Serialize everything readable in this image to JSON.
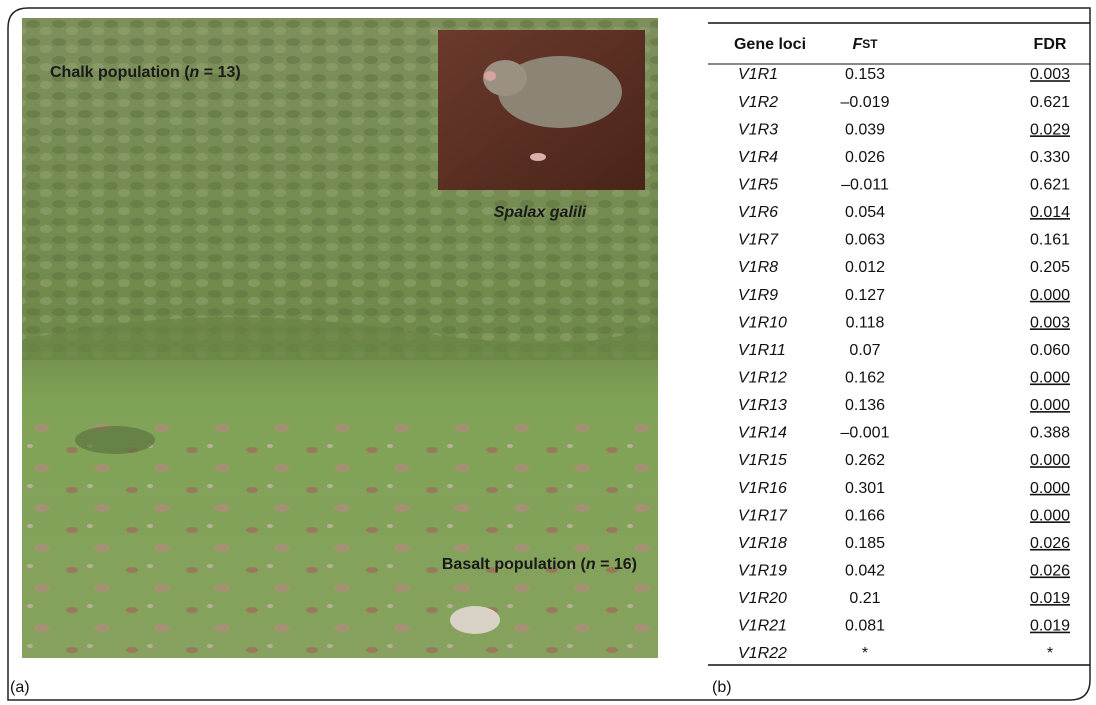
{
  "panel_a": {
    "chalk_label": [
      "Chalk population (",
      "n",
      " = 13)"
    ],
    "basalt_label": [
      "Basalt population (",
      "n",
      " = 16)"
    ],
    "species_label": "Spalax galili",
    "panel_tag": "(a)"
  },
  "panel_b": {
    "columns": [
      "Gene loci",
      [
        "F",
        "ST"
      ],
      "FDR"
    ],
    "rows": [
      {
        "cells": [
          "V1R1",
          "0.153",
          "0.003"
        ],
        "fdr_underlined": true
      },
      {
        "cells": [
          "V1R2",
          "–0.019",
          "0.621"
        ],
        "fdr_underlined": false
      },
      {
        "cells": [
          "V1R3",
          "0.039",
          "0.029"
        ],
        "fdr_underlined": true
      },
      {
        "cells": [
          "V1R4",
          "0.026",
          "0.330"
        ],
        "fdr_underlined": false
      },
      {
        "cells": [
          "V1R5",
          "–0.011",
          "0.621"
        ],
        "fdr_underlined": false
      },
      {
        "cells": [
          "V1R6",
          "0.054",
          "0.014"
        ],
        "fdr_underlined": true
      },
      {
        "cells": [
          "V1R7",
          "0.063",
          "0.161"
        ],
        "fdr_underlined": false
      },
      {
        "cells": [
          "V1R8",
          "0.012",
          "0.205"
        ],
        "fdr_underlined": false
      },
      {
        "cells": [
          "V1R9",
          "0.127",
          "0.000"
        ],
        "fdr_underlined": true
      },
      {
        "cells": [
          "V1R10",
          "0.118",
          "0.003"
        ],
        "fdr_underlined": true
      },
      {
        "cells": [
          "V1R11",
          "0.07",
          "0.060"
        ],
        "fdr_underlined": false
      },
      {
        "cells": [
          "V1R12",
          "0.162",
          "0.000"
        ],
        "fdr_underlined": true
      },
      {
        "cells": [
          "V1R13",
          "0.136",
          "0.000"
        ],
        "fdr_underlined": true
      },
      {
        "cells": [
          "V1R14",
          "–0.001",
          "0.388"
        ],
        "fdr_underlined": false
      },
      {
        "cells": [
          "V1R15",
          "0.262",
          "0.000"
        ],
        "fdr_underlined": true
      },
      {
        "cells": [
          "V1R16",
          "0.301",
          "0.000"
        ],
        "fdr_underlined": true
      },
      {
        "cells": [
          "V1R17",
          "0.166",
          "0.000"
        ],
        "fdr_underlined": true
      },
      {
        "cells": [
          "V1R18",
          "0.185",
          "0.026"
        ],
        "fdr_underlined": true
      },
      {
        "cells": [
          "V1R19",
          "0.042",
          "0.026"
        ],
        "fdr_underlined": true
      },
      {
        "cells": [
          "V1R20",
          "0.21",
          "0.019"
        ],
        "fdr_underlined": true
      },
      {
        "cells": [
          "V1R21",
          "0.081",
          "0.019"
        ],
        "fdr_underlined": true
      },
      {
        "cells": [
          "V1R22",
          "*",
          "*"
        ],
        "fdr_underlined": false
      }
    ],
    "panel_tag": "(b)"
  }
}
